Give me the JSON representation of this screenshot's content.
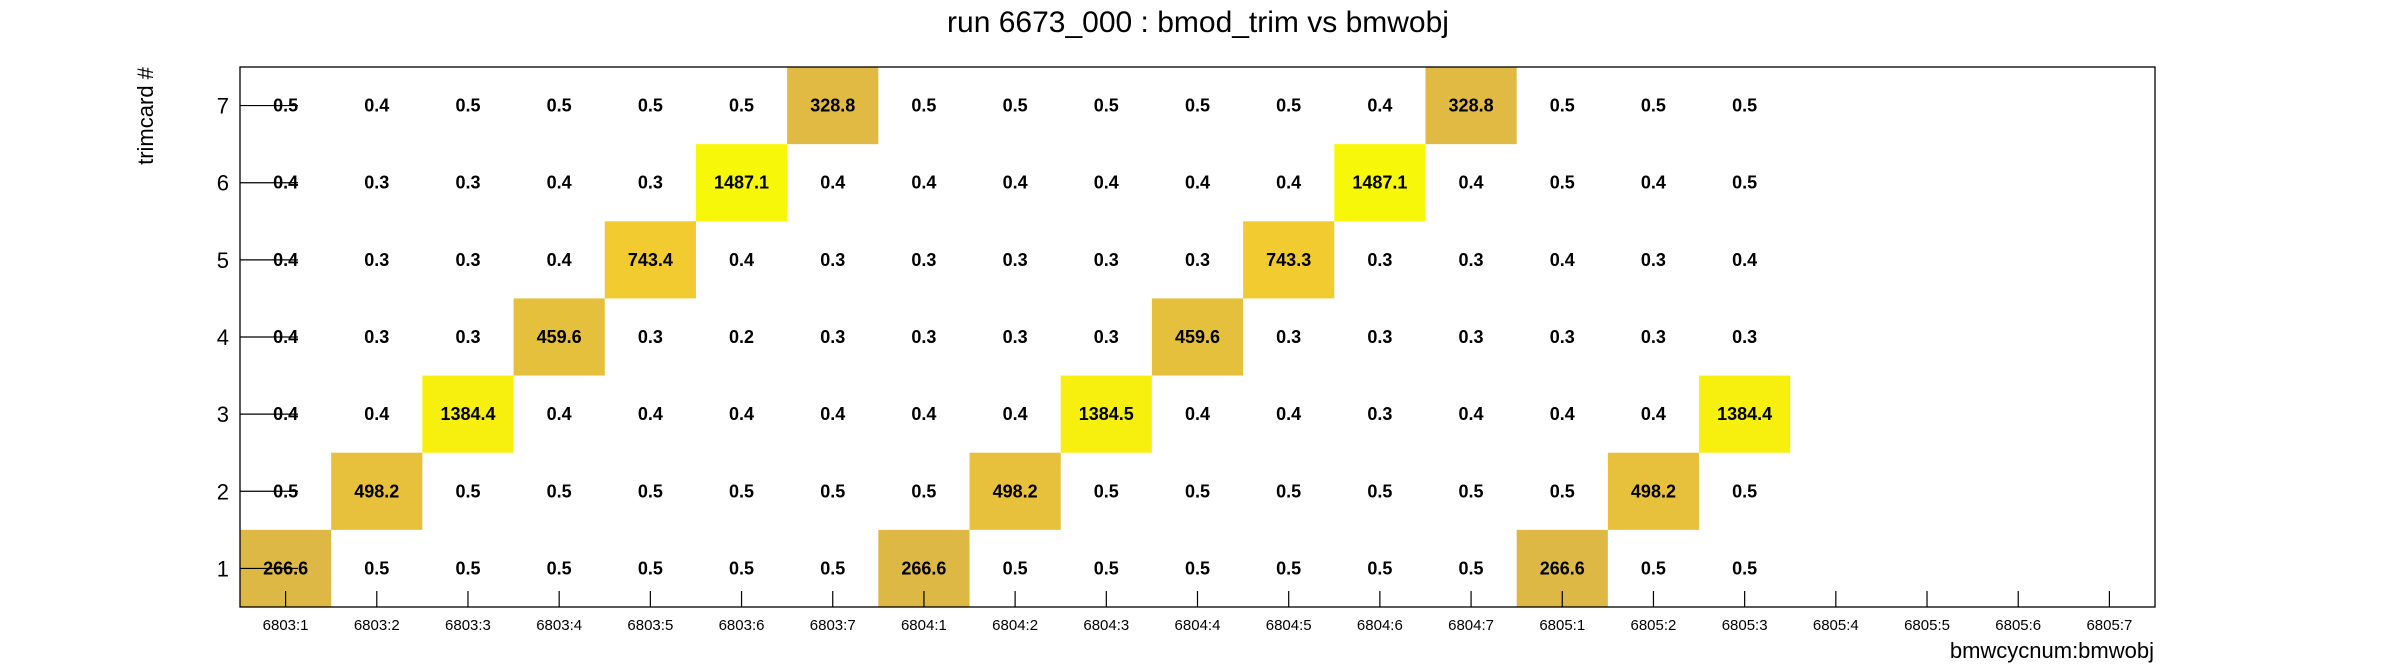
{
  "chart_data": {
    "type": "heatmap",
    "title": "run 6673_000 : bmod_trim vs bmwobj",
    "xlabel": "bmwcycnum:bmwobj",
    "ylabel": "trimcard #",
    "x_categories": [
      "6803:1",
      "6803:2",
      "6803:3",
      "6803:4",
      "6803:5",
      "6803:6",
      "6803:7",
      "6804:1",
      "6804:2",
      "6804:3",
      "6804:4",
      "6804:5",
      "6804:6",
      "6804:7",
      "6805:1",
      "6805:2",
      "6805:3",
      "6805:4",
      "6805:5",
      "6805:6",
      "6805:7"
    ],
    "y_categories": [
      "1",
      "2",
      "3",
      "4",
      "5",
      "6",
      "7"
    ],
    "z_values": [
      [
        "266.6",
        "0.5",
        "0.5",
        "0.5",
        "0.5",
        "0.5",
        "0.5",
        "266.6",
        "0.5",
        "0.5",
        "0.5",
        "0.5",
        "0.5",
        "0.5",
        "266.6",
        "0.5",
        "0.5",
        null,
        null,
        null,
        null
      ],
      [
        "0.5",
        "498.2",
        "0.5",
        "0.5",
        "0.5",
        "0.5",
        "0.5",
        "0.5",
        "498.2",
        "0.5",
        "0.5",
        "0.5",
        "0.5",
        "0.5",
        "0.5",
        "498.2",
        "0.5",
        null,
        null,
        null,
        null
      ],
      [
        "0.4",
        "0.4",
        "1384.4",
        "0.4",
        "0.4",
        "0.4",
        "0.4",
        "0.4",
        "0.4",
        "1384.5",
        "0.4",
        "0.4",
        "0.3",
        "0.4",
        "0.4",
        "0.4",
        "1384.4",
        null,
        null,
        null,
        null
      ],
      [
        "0.4",
        "0.3",
        "0.3",
        "459.6",
        "0.3",
        "0.2",
        "0.3",
        "0.3",
        "0.3",
        "0.3",
        "459.6",
        "0.3",
        "0.3",
        "0.3",
        "0.3",
        "0.3",
        "0.3",
        null,
        null,
        null,
        null
      ],
      [
        "0.4",
        "0.3",
        "0.3",
        "0.4",
        "743.4",
        "0.4",
        "0.3",
        "0.3",
        "0.3",
        "0.3",
        "0.3",
        "743.3",
        "0.3",
        "0.3",
        "0.4",
        "0.3",
        "0.4",
        null,
        null,
        null,
        null
      ],
      [
        "0.4",
        "0.3",
        "0.3",
        "0.4",
        "0.3",
        "1487.1",
        "0.4",
        "0.4",
        "0.4",
        "0.4",
        "0.4",
        "0.4",
        "1487.1",
        "0.4",
        "0.5",
        "0.4",
        "0.5",
        null,
        null,
        null,
        null
      ],
      [
        "0.5",
        "0.4",
        "0.5",
        "0.5",
        "0.5",
        "0.5",
        "328.8",
        "0.5",
        "0.5",
        "0.5",
        "0.5",
        "0.5",
        "0.4",
        "328.8",
        "0.5",
        "0.5",
        "0.5",
        null,
        null,
        null,
        null
      ]
    ],
    "palette": {
      "low": "#DDB845",
      "mid": "#F7D02A",
      "high": "#F7F70A"
    },
    "grid": false,
    "legend": "none"
  }
}
